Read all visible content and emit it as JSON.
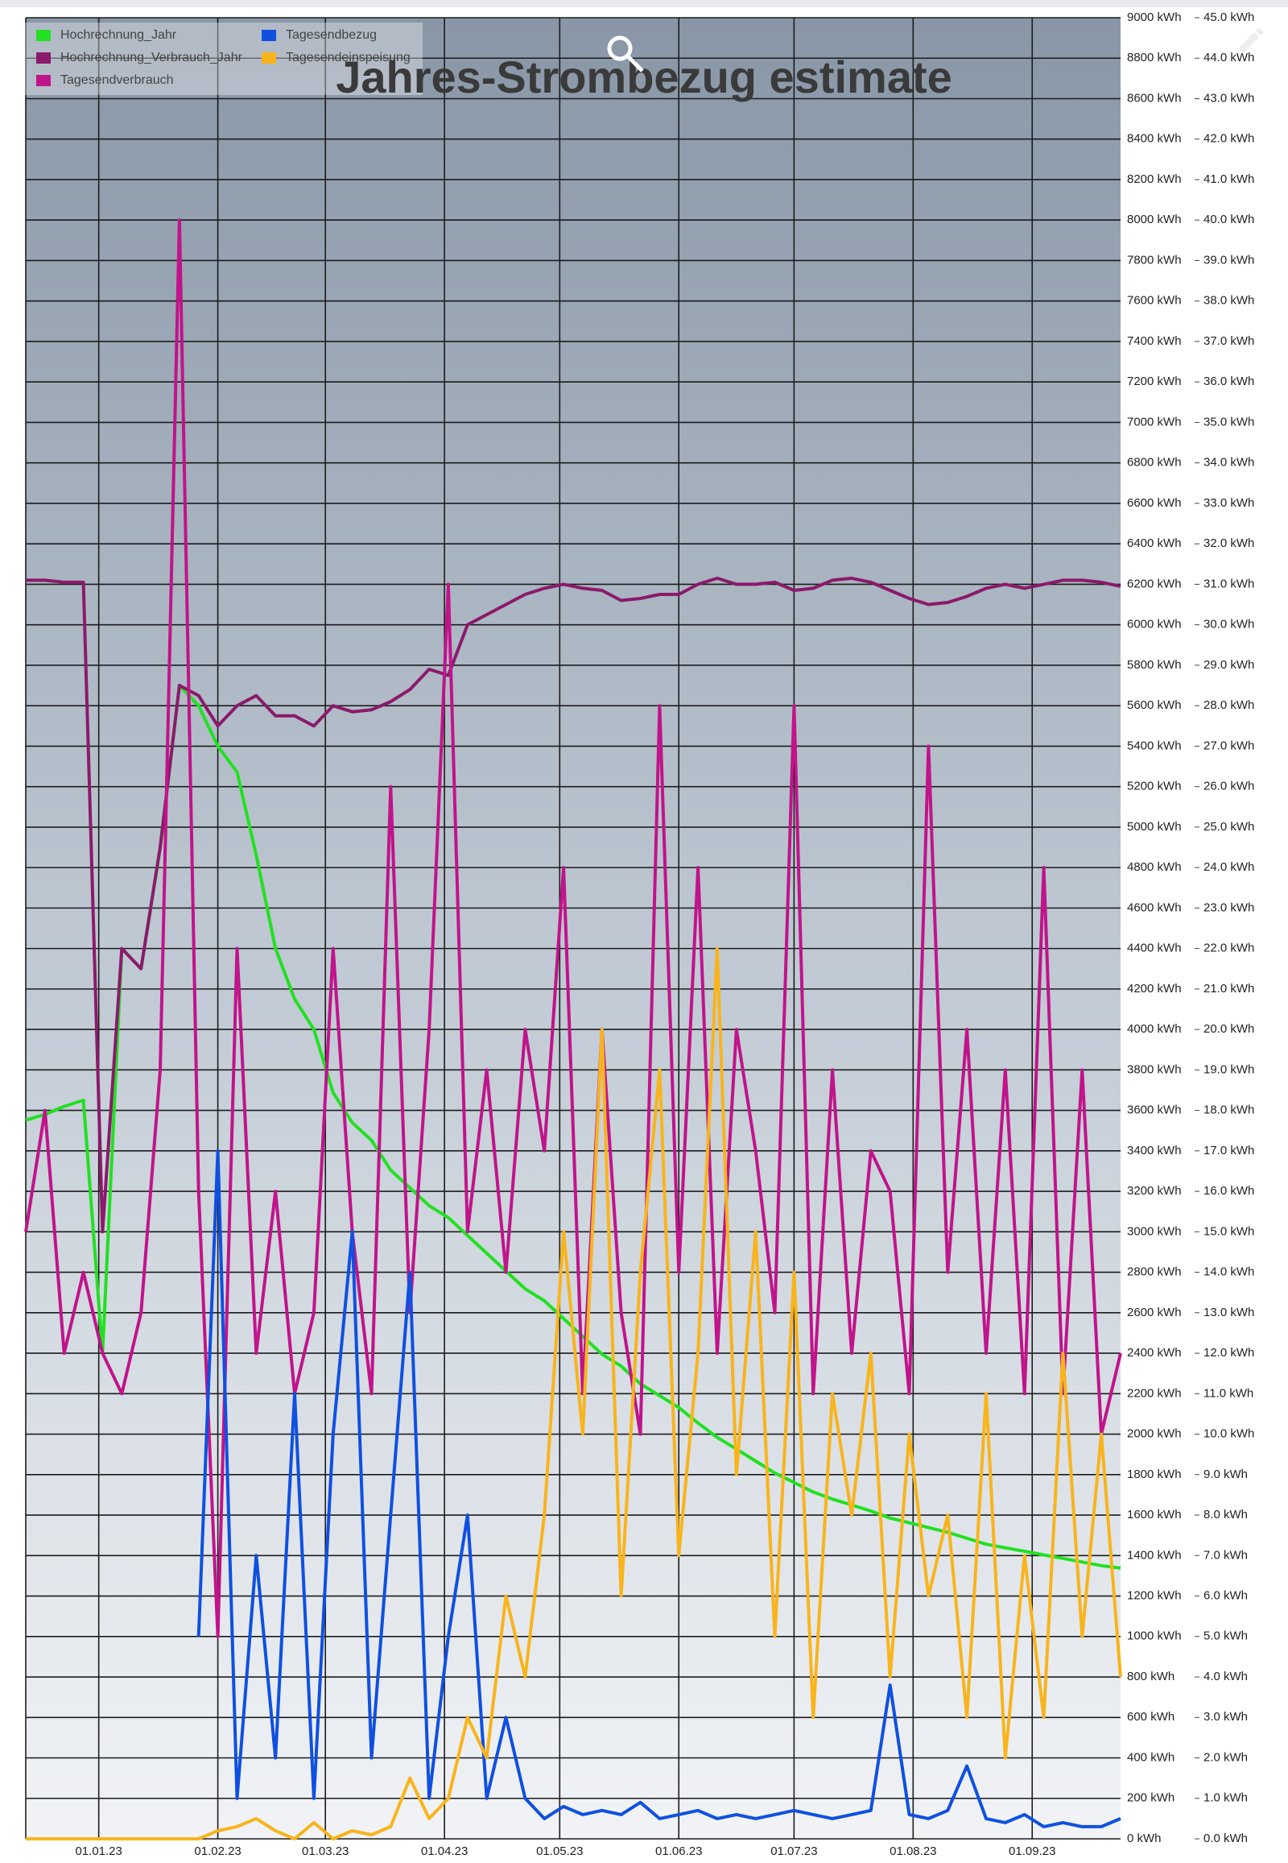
{
  "chart_data": {
    "type": "line",
    "title": "Jahres-Strombezug estimate",
    "legend": "top-left",
    "grid": true,
    "x": [
      "2022-12-13",
      "2022-12-18",
      "2022-12-23",
      "2022-12-28",
      "2023-01-02",
      "2023-01-07",
      "2023-01-12",
      "2023-01-17",
      "2023-01-22",
      "2023-01-27",
      "2023-02-01",
      "2023-02-06",
      "2023-02-11",
      "2023-02-16",
      "2023-02-21",
      "2023-02-26",
      "2023-03-03",
      "2023-03-08",
      "2023-03-13",
      "2023-03-18",
      "2023-03-23",
      "2023-03-28",
      "2023-04-02",
      "2023-04-07",
      "2023-04-12",
      "2023-04-17",
      "2023-04-22",
      "2023-04-27",
      "2023-05-02",
      "2023-05-07",
      "2023-05-12",
      "2023-05-17",
      "2023-05-22",
      "2023-05-27",
      "2023-06-01",
      "2023-06-06",
      "2023-06-11",
      "2023-06-16",
      "2023-06-21",
      "2023-06-26",
      "2023-07-01",
      "2023-07-06",
      "2023-07-11",
      "2023-07-16",
      "2023-07-21",
      "2023-07-26",
      "2023-07-31",
      "2023-08-05",
      "2023-08-10",
      "2023-08-15",
      "2023-08-20",
      "2023-08-25",
      "2023-08-30",
      "2023-09-04",
      "2023-09-09",
      "2023-09-14",
      "2023-09-19",
      "2023-09-24"
    ],
    "xlim": [
      "2022-12-13",
      "2023-09-24"
    ],
    "xticks": [
      {
        "value": "2023-01-01",
        "label": "01.01.23"
      },
      {
        "value": "2023-02-01",
        "label": "01.02.23"
      },
      {
        "value": "2023-03-01",
        "label": "01.03.23"
      },
      {
        "value": "2023-04-01",
        "label": "01.04.23"
      },
      {
        "value": "2023-05-01",
        "label": "01.05.23"
      },
      {
        "value": "2023-06-01",
        "label": "01.06.23"
      },
      {
        "value": "2023-07-01",
        "label": "01.07.23"
      },
      {
        "value": "2023-08-01",
        "label": "01.08.23"
      },
      {
        "value": "2023-09-01",
        "label": "01.09.23"
      }
    ],
    "ylim": [
      0,
      9000
    ],
    "yticks": [
      {
        "value": 0,
        "label": "0 kWh"
      },
      {
        "value": 200,
        "label": "200 kWh"
      },
      {
        "value": 400,
        "label": "400 kWh"
      },
      {
        "value": 600,
        "label": "600 kWh"
      },
      {
        "value": 800,
        "label": "800 kWh"
      },
      {
        "value": 1000,
        "label": "1000 kWh"
      },
      {
        "value": 1200,
        "label": "1200 kWh"
      },
      {
        "value": 1400,
        "label": "1400 kWh"
      },
      {
        "value": 1600,
        "label": "1600 kWh"
      },
      {
        "value": 1800,
        "label": "1800 kWh"
      },
      {
        "value": 2000,
        "label": "2000 kWh"
      },
      {
        "value": 2200,
        "label": "2200 kWh"
      },
      {
        "value": 2400,
        "label": "2400 kWh"
      },
      {
        "value": 2600,
        "label": "2600 kWh"
      },
      {
        "value": 2800,
        "label": "2800 kWh"
      },
      {
        "value": 3000,
        "label": "3000 kWh"
      },
      {
        "value": 3200,
        "label": "3200 kWh"
      },
      {
        "value": 3400,
        "label": "3400 kWh"
      },
      {
        "value": 3600,
        "label": "3600 kWh"
      },
      {
        "value": 3800,
        "label": "3800 kWh"
      },
      {
        "value": 4000,
        "label": "4000 kWh"
      },
      {
        "value": 4200,
        "label": "4200 kWh"
      },
      {
        "value": 4400,
        "label": "4400 kWh"
      },
      {
        "value": 4600,
        "label": "4600 kWh"
      },
      {
        "value": 4800,
        "label": "4800 kWh"
      },
      {
        "value": 5000,
        "label": "5000 kWh"
      },
      {
        "value": 5200,
        "label": "5200 kWh"
      },
      {
        "value": 5400,
        "label": "5400 kWh"
      },
      {
        "value": 5600,
        "label": "5600 kWh"
      },
      {
        "value": 5800,
        "label": "5800 kWh"
      },
      {
        "value": 6000,
        "label": "6000 kWh"
      },
      {
        "value": 6200,
        "label": "6200 kWh"
      },
      {
        "value": 6400,
        "label": "6400 kWh"
      },
      {
        "value": 6600,
        "label": "6600 kWh"
      },
      {
        "value": 6800,
        "label": "6800 kWh"
      },
      {
        "value": 7000,
        "label": "7000 kWh"
      },
      {
        "value": 7200,
        "label": "7200 kWh"
      },
      {
        "value": 7400,
        "label": "7400 kWh"
      },
      {
        "value": 7600,
        "label": "7600 kWh"
      },
      {
        "value": 7800,
        "label": "7800 kWh"
      },
      {
        "value": 8000,
        "label": "8000 kWh"
      },
      {
        "value": 8200,
        "label": "8200 kWh"
      },
      {
        "value": 8400,
        "label": "8400 kWh"
      },
      {
        "value": 8600,
        "label": "8600 kWh"
      },
      {
        "value": 8800,
        "label": "8800 kWh"
      },
      {
        "value": 9000,
        "label": "9000 kWh"
      }
    ],
    "y2lim": [
      0,
      45
    ],
    "y2ticks": [
      {
        "value": 0,
        "label": "0.0 kWh"
      },
      {
        "value": 1,
        "label": "1.0 kWh"
      },
      {
        "value": 2,
        "label": "2.0 kWh"
      },
      {
        "value": 3,
        "label": "3.0 kWh"
      },
      {
        "value": 4,
        "label": "4.0 kWh"
      },
      {
        "value": 5,
        "label": "5.0 kWh"
      },
      {
        "value": 6,
        "label": "6.0 kWh"
      },
      {
        "value": 7,
        "label": "7.0 kWh"
      },
      {
        "value": 8,
        "label": "8.0 kWh"
      },
      {
        "value": 9,
        "label": "9.0 kWh"
      },
      {
        "value": 10,
        "label": "10.0 kWh"
      },
      {
        "value": 11,
        "label": "11.0 kWh"
      },
      {
        "value": 12,
        "label": "12.0 kWh"
      },
      {
        "value": 13,
        "label": "13.0 kWh"
      },
      {
        "value": 14,
        "label": "14.0 kWh"
      },
      {
        "value": 15,
        "label": "15.0 kWh"
      },
      {
        "value": 16,
        "label": "16.0 kWh"
      },
      {
        "value": 17,
        "label": "17.0 kWh"
      },
      {
        "value": 18,
        "label": "18.0 kWh"
      },
      {
        "value": 19,
        "label": "19.0 kWh"
      },
      {
        "value": 20,
        "label": "20.0 kWh"
      },
      {
        "value": 21,
        "label": "21.0 kWh"
      },
      {
        "value": 22,
        "label": "22.0 kWh"
      },
      {
        "value": 23,
        "label": "23.0 kWh"
      },
      {
        "value": 24,
        "label": "24.0 kWh"
      },
      {
        "value": 25,
        "label": "25.0 kWh"
      },
      {
        "value": 26,
        "label": "26.0 kWh"
      },
      {
        "value": 27,
        "label": "27.0 kWh"
      },
      {
        "value": 28,
        "label": "28.0 kWh"
      },
      {
        "value": 29,
        "label": "29.0 kWh"
      },
      {
        "value": 30,
        "label": "30.0 kWh"
      },
      {
        "value": 31,
        "label": "31.0 kWh"
      },
      {
        "value": 32,
        "label": "32.0 kWh"
      },
      {
        "value": 33,
        "label": "33.0 kWh"
      },
      {
        "value": 34,
        "label": "34.0 kWh"
      },
      {
        "value": 35,
        "label": "35.0 kWh"
      },
      {
        "value": 36,
        "label": "36.0 kWh"
      },
      {
        "value": 37,
        "label": "37.0 kWh"
      },
      {
        "value": 38,
        "label": "38.0 kWh"
      },
      {
        "value": 39,
        "label": "39.0 kWh"
      },
      {
        "value": 40,
        "label": "40.0 kWh"
      },
      {
        "value": 41,
        "label": "41.0 kWh"
      },
      {
        "value": 42,
        "label": "42.0 kWh"
      },
      {
        "value": 43,
        "label": "43.0 kWh"
      },
      {
        "value": 44,
        "label": "44.0 kWh"
      },
      {
        "value": 45,
        "label": "45.0 kWh"
      }
    ],
    "series": [
      {
        "name": "Hochrechnung_Jahr",
        "color": "#22e022",
        "values": [
          3552,
          3580,
          3620,
          3650,
          2400,
          4400,
          4300,
          4900,
          5700,
          5600,
          5400,
          5272,
          4861,
          4400,
          4150,
          4000,
          3687,
          3540,
          3452,
          3305,
          3217,
          3129,
          3070,
          2982,
          2894,
          2806,
          2718,
          2659,
          2571,
          2483,
          2395,
          2336,
          2249,
          2190,
          2131,
          2055,
          1984,
          1926,
          1867,
          1808,
          1761,
          1714,
          1679,
          1650,
          1620,
          1585,
          1562,
          1538,
          1515,
          1485,
          1456,
          1438,
          1421,
          1403,
          1386,
          1368,
          1350,
          1338
        ]
      },
      {
        "name": "Hochrechnung_Verbrauch_Jahr",
        "color": "#8b1a6b",
        "values": [
          6220,
          6220,
          6210,
          6210,
          3000,
          4400,
          4300,
          4900,
          5700,
          5650,
          5500,
          5600,
          5650,
          5550,
          5550,
          5500,
          5600,
          5570,
          5580,
          5620,
          5680,
          5780,
          5750,
          6000,
          6050,
          6100,
          6150,
          6180,
          6200,
          6180,
          6170,
          6120,
          6130,
          6150,
          6150,
          6200,
          6230,
          6200,
          6200,
          6210,
          6170,
          6180,
          6220,
          6230,
          6210,
          6170,
          6130,
          6100,
          6110,
          6140,
          6180,
          6200,
          6180,
          6200,
          6220,
          6220,
          6210,
          6190
        ]
      },
      {
        "name": "Tagesendverbrauch",
        "color": "#c0148a",
        "axis": "y2",
        "values": [
          15,
          18,
          12,
          14,
          12,
          11,
          13,
          19,
          40,
          16,
          5,
          22,
          12,
          16,
          11,
          13,
          22,
          15,
          11,
          26,
          13,
          20,
          31,
          15,
          19,
          14,
          20,
          17,
          24,
          11,
          20,
          13,
          10,
          28,
          14,
          24,
          12,
          20,
          17,
          13,
          28,
          11,
          19,
          12,
          17,
          16,
          11,
          27,
          14,
          20,
          12,
          19,
          11,
          24,
          11,
          19,
          10,
          12
        ]
      },
      {
        "name": "Tagesendbezug",
        "color": "#1050e0",
        "axis": "y2",
        "values": [
          null,
          null,
          null,
          null,
          null,
          null,
          null,
          null,
          null,
          5,
          17,
          1,
          7,
          2,
          11,
          1,
          10,
          15,
          2,
          8,
          14,
          1,
          5,
          8,
          1,
          3,
          1,
          0.5,
          0.8,
          0.6,
          0.7,
          0.6,
          0.9,
          0.5,
          0.6,
          0.7,
          0.5,
          0.6,
          0.5,
          0.6,
          0.7,
          0.6,
          0.5,
          0.6,
          0.7,
          3.8,
          0.6,
          0.5,
          0.7,
          1.8,
          0.5,
          0.4,
          0.6,
          0.3,
          0.4,
          0.3,
          0.3,
          0.5
        ]
      },
      {
        "name": "Tagesendeinspeisung",
        "color": "#f8b41c",
        "axis": "y2",
        "values": [
          0,
          0,
          0,
          0,
          0,
          0,
          0,
          0,
          0,
          0,
          0.2,
          0.3,
          0.5,
          0.2,
          0,
          0.4,
          0,
          0.2,
          0.1,
          0.3,
          1.5,
          0.5,
          1,
          3,
          2,
          6,
          4,
          8,
          15,
          10,
          20,
          6,
          14,
          19,
          7,
          12,
          22,
          9,
          15,
          5,
          14,
          3,
          11,
          8,
          12,
          4,
          10,
          6,
          8,
          3,
          11,
          2,
          7,
          3,
          12,
          5,
          10,
          4
        ]
      }
    ]
  }
}
